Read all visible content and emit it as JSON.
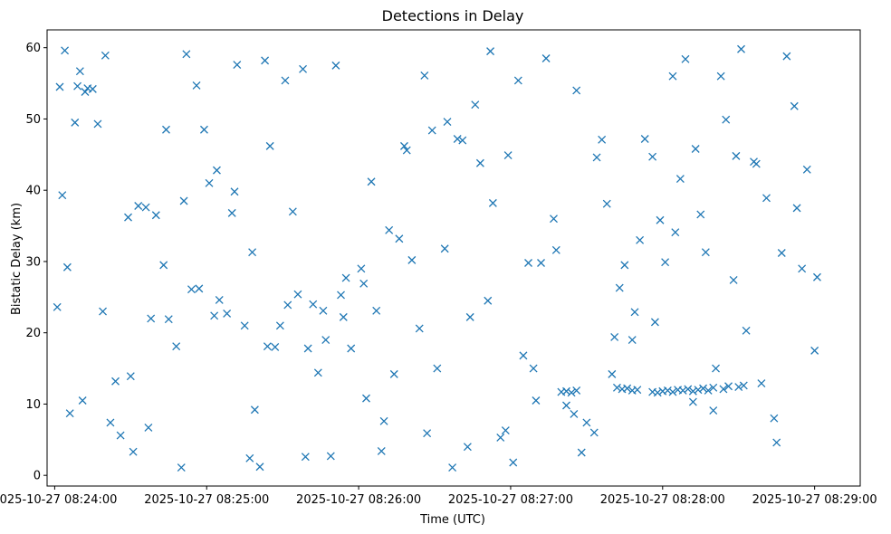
{
  "chart_data": {
    "type": "scatter",
    "title": "Detections in Delay",
    "xlabel": "Time (UTC)",
    "ylabel": "Bistatic Delay (km)",
    "x_unit": "time (UTC)",
    "x_ticks": [
      "2025-10-27 08:24:00",
      "2025-10-27 08:25:00",
      "2025-10-27 08:26:00",
      "2025-10-27 08:27:00",
      "2025-10-27 08:28:00",
      "2025-10-27 08:29:00"
    ],
    "y_ticks": [
      0,
      10,
      20,
      30,
      40,
      50,
      60
    ],
    "xlim": [
      "2025-10-27 08:23:57",
      "2025-10-27 08:29:18"
    ],
    "ylim": [
      -1.5,
      62.5
    ],
    "marker": "x",
    "color": "#1f77b4",
    "grid": false,
    "series": [
      {
        "x": [
          "2025-10-27 08:24:01",
          "2025-10-27 08:24:02",
          "2025-10-27 08:24:04",
          "2025-10-27 08:24:08",
          "2025-10-27 08:24:09",
          "2025-10-27 08:24:10",
          "2025-10-27 08:24:13",
          "2025-10-27 08:24:17",
          "2025-10-27 08:24:20",
          "2025-10-27 08:24:29",
          "2025-10-27 08:24:30",
          "2025-10-27 08:24:36",
          "2025-10-27 08:24:40",
          "2025-10-27 08:24:45",
          "2025-10-27 08:24:48",
          "2025-10-27 08:24:52",
          "2025-10-27 08:24:56",
          "2025-10-27 08:24:59",
          "2025-10-27 08:25:03",
          "2025-10-27 08:25:08",
          "2025-10-27 08:25:12",
          "2025-10-27 08:25:15",
          "2025-10-27 08:25:19",
          "2025-10-27 08:25:23",
          "2025-10-27 08:25:27",
          "2025-10-27 08:25:31",
          "2025-10-27 08:25:34",
          "2025-10-27 08:25:38",
          "2025-10-27 08:25:42",
          "2025-10-27 08:25:46",
          "2025-10-27 08:25:49",
          "2025-10-27 08:25:53",
          "2025-10-27 08:25:57",
          "2025-10-27 08:26:01",
          "2025-10-27 08:26:05",
          "2025-10-27 08:26:09",
          "2025-10-27 08:26:12",
          "2025-10-27 08:26:16",
          "2025-10-27 08:26:21",
          "2025-10-27 08:26:24",
          "2025-10-27 08:26:29",
          "2025-10-27 08:26:34",
          "2025-10-27 08:26:37",
          "2025-10-27 08:26:41",
          "2025-10-27 08:26:44",
          "2025-10-27 08:26:48",
          "2025-10-27 08:26:53",
          "2025-10-27 08:26:56",
          "2025-10-27 08:26:59",
          "2025-10-27 08:27:03",
          "2025-10-27 08:27:07",
          "2025-10-27 08:27:10",
          "2025-10-27 08:27:14",
          "2025-10-27 08:27:18",
          "2025-10-27 08:27:22",
          "2025-10-27 08:27:26",
          "2025-10-27 08:27:30",
          "2025-10-27 08:27:34",
          "2025-10-27 08:27:38",
          "2025-10-27 08:27:41",
          "2025-10-27 08:27:45",
          "2025-10-27 08:27:49",
          "2025-10-27 08:27:53",
          "2025-10-27 08:27:57",
          "2025-10-27 08:28:01",
          "2025-10-27 08:28:05",
          "2025-10-27 08:28:09",
          "2025-10-27 08:28:13",
          "2025-10-27 08:28:17",
          "2025-10-27 08:28:21",
          "2025-10-27 08:28:25",
          "2025-10-27 08:28:29",
          "2025-10-27 08:28:33",
          "2025-10-27 08:28:37",
          "2025-10-27 08:28:41",
          "2025-10-27 08:28:45",
          "2025-10-27 08:28:49",
          "2025-10-27 08:28:53",
          "2025-10-27 08:28:57",
          "2025-10-27 08:29:01",
          "2025-10-27 08:24:03",
          "2025-10-27 08:24:06",
          "2025-10-27 08:24:11",
          "2025-10-27 08:24:15",
          "2025-10-27 08:24:22",
          "2025-10-27 08:24:26",
          "2025-10-27 08:24:33",
          "2025-10-27 08:24:38",
          "2025-10-27 08:24:43",
          "2025-10-27 08:24:50",
          "2025-10-27 08:24:54",
          "2025-10-27 08:25:01",
          "2025-10-27 08:25:05",
          "2025-10-27 08:25:10",
          "2025-10-27 08:25:17",
          "2025-10-27 08:25:21",
          "2025-10-27 08:25:25",
          "2025-10-27 08:25:29",
          "2025-10-27 08:25:36",
          "2025-10-27 08:25:40",
          "2025-10-27 08:25:44",
          "2025-10-27 08:25:51",
          "2025-10-27 08:25:55",
          "2025-10-27 08:26:03",
          "2025-10-27 08:26:07",
          "2025-10-27 08:26:14",
          "2025-10-27 08:26:18",
          "2025-10-27 08:26:26",
          "2025-10-27 08:26:31",
          "2025-10-27 08:26:39",
          "2025-10-27 08:26:46",
          "2025-10-27 08:26:51",
          "2025-10-27 08:26:58",
          "2025-10-27 08:27:05",
          "2025-10-27 08:27:12",
          "2025-10-27 08:27:20",
          "2025-10-27 08:27:28",
          "2025-10-27 08:27:36",
          "2025-10-27 08:27:43",
          "2025-10-27 08:27:51",
          "2025-10-27 08:27:59",
          "2025-10-27 08:28:07",
          "2025-10-27 08:28:15",
          "2025-10-27 08:28:23",
          "2025-10-27 08:28:31",
          "2025-10-27 08:28:39",
          "2025-10-27 08:28:47",
          "2025-10-27 08:28:55",
          "2025-10-27 08:24:05",
          "2025-10-27 08:24:12",
          "2025-10-27 08:24:19",
          "2025-10-27 08:24:24",
          "2025-10-27 08:24:31",
          "2025-10-27 08:24:37",
          "2025-10-27 08:24:44",
          "2025-10-27 08:24:51",
          "2025-10-27 08:24:57",
          "2025-10-27 08:25:04",
          "2025-10-27 08:25:11",
          "2025-10-27 08:25:18",
          "2025-10-27 08:25:24",
          "2025-10-27 08:25:32",
          "2025-10-27 08:25:39",
          "2025-10-27 08:25:47",
          "2025-10-27 08:25:54",
          "2025-10-27 08:26:02",
          "2025-10-27 08:26:10",
          "2025-10-27 08:26:19",
          "2025-10-27 08:26:27",
          "2025-10-27 08:26:35",
          "2025-10-27 08:26:43",
          "2025-10-27 08:26:52",
          "2025-10-27 08:27:01",
          "2025-10-27 08:27:09",
          "2025-10-27 08:27:17",
          "2025-10-27 08:27:25",
          "2025-10-27 08:27:33",
          "2025-10-27 08:27:40",
          "2025-10-27 08:27:48",
          "2025-10-27 08:27:56",
          "2025-10-27 08:28:04",
          "2025-10-27 08:28:12",
          "2025-10-27 08:28:20",
          "2025-10-27 08:28:28",
          "2025-10-27 08:28:36",
          "2025-10-27 08:28:44",
          "2025-10-27 08:28:52",
          "2025-10-27 08:29:00",
          "2025-10-27 08:27:22",
          "2025-10-27 08:27:24",
          "2025-10-27 08:27:26",
          "2025-10-27 08:27:42",
          "2025-10-27 08:27:44",
          "2025-10-27 08:27:46",
          "2025-10-27 08:27:48",
          "2025-10-27 08:27:50",
          "2025-10-27 08:27:56",
          "2025-10-27 08:27:58",
          "2025-10-27 08:28:00",
          "2025-10-27 08:28:02",
          "2025-10-27 08:28:04",
          "2025-10-27 08:28:06",
          "2025-10-27 08:28:08",
          "2025-10-27 08:28:10",
          "2025-10-27 08:28:12",
          "2025-10-27 08:28:14",
          "2025-10-27 08:28:16",
          "2025-10-27 08:28:18",
          "2025-10-27 08:28:20",
          "2025-10-27 08:28:24",
          "2025-10-27 08:28:26",
          "2025-10-27 08:28:30",
          "2025-10-27 08:28:32"
        ],
        "y": [
          23.6,
          54.5,
          59.6,
          49.5,
          54.6,
          56.7,
          54.3,
          49.3,
          58.9,
          36.2,
          13.9,
          37.6,
          36.5,
          21.9,
          18.1,
          59.1,
          54.7,
          48.5,
          22.4,
          22.7,
          57.6,
          21.0,
          9.2,
          58.2,
          18.0,
          55.4,
          37.0,
          57.0,
          24.0,
          23.1,
          2.7,
          25.3,
          17.8,
          29.0,
          41.2,
          3.4,
          34.4,
          33.2,
          30.2,
          20.6,
          48.4,
          31.8,
          1.1,
          47.0,
          22.2,
          43.8,
          38.2,
          5.3,
          44.9,
          55.4,
          29.8,
          10.5,
          58.5,
          31.6,
          9.8,
          54.0,
          7.4,
          44.6,
          38.1,
          19.4,
          29.5,
          22.9,
          47.2,
          21.5,
          29.9,
          34.1,
          58.4,
          45.8,
          31.3,
          15.0,
          49.9,
          44.8,
          20.3,
          43.7,
          38.9,
          4.6,
          58.8,
          37.5,
          42.9,
          27.8,
          39.3,
          8.7,
          10.5,
          54.2,
          7.4,
          5.6,
          37.8,
          22.0,
          29.5,
          1.1,
          26.1,
          41.0,
          24.6,
          36.8,
          2.4,
          1.2,
          46.2,
          21.0,
          25.4,
          17.8,
          14.4,
          57.5,
          27.7,
          10.8,
          23.1,
          14.2,
          46.2,
          56.1,
          15.0,
          47.2,
          52.0,
          24.5,
          6.3,
          16.8,
          29.8,
          11.7,
          3.2,
          47.1,
          26.3,
          33.0,
          35.8,
          41.6,
          36.6,
          56.0,
          59.8,
          12.9,
          31.2,
          29.0,
          29.2,
          53.8,
          23.0,
          13.2,
          3.3,
          6.7,
          48.5,
          38.5,
          26.2,
          42.8,
          39.8,
          31.3,
          18.1,
          23.9,
          2.6,
          19.0,
          22.2,
          26.9,
          7.6,
          45.6,
          5.9,
          49.6,
          4.0,
          59.5,
          1.8,
          15.0,
          36.0,
          8.6,
          6.0,
          14.2,
          19.0,
          44.7,
          56.0,
          10.3,
          9.1,
          27.4,
          44.0,
          8.0,
          51.8,
          17.5,
          11.8,
          11.6,
          11.9,
          12.3,
          12.1,
          12.2,
          11.9,
          12.0,
          11.7,
          11.6,
          11.8,
          11.9,
          11.7,
          12.0,
          11.9,
          12.1,
          11.8,
          12.0,
          12.2,
          11.9,
          12.3,
          12.1,
          12.5,
          12.4,
          12.6
        ]
      }
    ]
  }
}
